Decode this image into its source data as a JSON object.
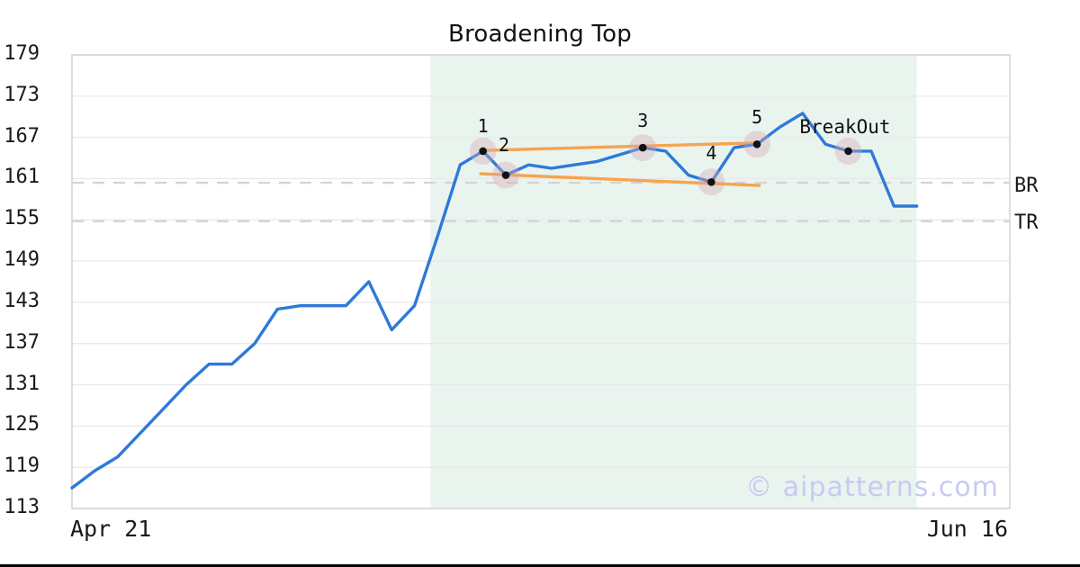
{
  "title": "Broadening Top",
  "watermark": "© aipatterns.com",
  "chart_data": {
    "type": "line",
    "title": "Broadening Top",
    "x_axis": {
      "tick_labels": [
        "Apr 21",
        "Jun 16"
      ],
      "tick_indices": [
        0,
        39.4
      ]
    },
    "y_axis": {
      "ticks": [
        113,
        119,
        125,
        131,
        137,
        143,
        149,
        155,
        161,
        167,
        173,
        179
      ],
      "range": [
        113,
        179
      ]
    },
    "series": [
      {
        "name": "price",
        "values": [
          116,
          118.5,
          120.5,
          124,
          127.5,
          131,
          134,
          134,
          137,
          142,
          142.5,
          142.5,
          142.5,
          146,
          139,
          142.5,
          152.5,
          163,
          165,
          161.5,
          163,
          162.5,
          163,
          163.5,
          164.5,
          165.5,
          165,
          161.5,
          160.5,
          165.5,
          166,
          168.5,
          170.5,
          166,
          165,
          165,
          157,
          157
        ]
      }
    ],
    "labeled_points": [
      {
        "label": "1",
        "index": 18,
        "value": 165
      },
      {
        "label": "2",
        "index": 19,
        "value": 161.5
      },
      {
        "label": "3",
        "index": 25,
        "value": 165.5
      },
      {
        "label": "4",
        "index": 28,
        "value": 160.5
      },
      {
        "label": "5",
        "index": 30,
        "value": 166
      },
      {
        "label": "BreakOut",
        "index": 34,
        "value": 165
      }
    ],
    "trendlines": [
      {
        "name": "upper-broadening-line",
        "from_index": 18,
        "from_value": 165.1,
        "to_index": 30.1,
        "to_value": 166.2
      },
      {
        "name": "lower-broadening-line",
        "from_index": 17.9,
        "from_value": 161.7,
        "to_index": 30.1,
        "to_value": 160.0
      }
    ],
    "hlines": [
      {
        "label": "BR",
        "value": 160.4
      },
      {
        "label": "TR",
        "value": 154.8
      }
    ],
    "shaded_region": {
      "from_index": 15.7,
      "to_index": 37
    },
    "colors": {
      "line": "#2e79d9",
      "trendline": "#f7a34f",
      "shade": "#eaf4ef",
      "grid": "#e8e8e8",
      "border": "#d5d5d5",
      "dashed": "#d5d5d5",
      "halo": "rgba(212,168,180,0.38)",
      "dot": "#111111",
      "label_text": "#111111",
      "watermark": "#c7cbf2"
    }
  }
}
